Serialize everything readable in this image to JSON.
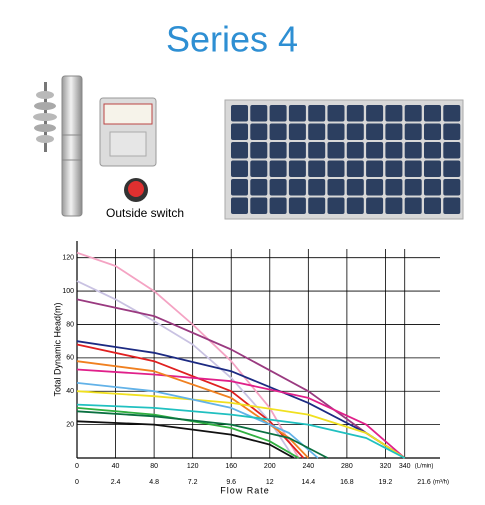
{
  "title": "Series 4",
  "switch_caption": "Outside switch",
  "chart_data": {
    "type": "line",
    "y_label": "Total Dynamic Head(m)",
    "x_label": "Flow Rate",
    "x_unit": "(L/min)",
    "x2_unit": "(m³/h)",
    "xlim": [
      0,
      360
    ],
    "xticks": [
      0,
      40,
      80,
      120,
      160,
      200,
      240,
      280,
      320,
      340
    ],
    "x2lim": [
      0,
      21.6
    ],
    "x2ticks": [
      0,
      2.4,
      4.8,
      7.2,
      9.6,
      12,
      14.4,
      16.8,
      19.2,
      21.6
    ],
    "ylim": [
      0,
      130
    ],
    "yticks": [
      20,
      40,
      60,
      80,
      100,
      120
    ],
    "grid": true,
    "series": [
      {
        "color": "#f4a3c3",
        "x": [
          0,
          40,
          80,
          120,
          160,
          200,
          230
        ],
        "values": [
          123,
          115,
          100,
          80,
          58,
          30,
          0
        ]
      },
      {
        "color": "#c9c2e2",
        "x": [
          0,
          40,
          80,
          120,
          160,
          200,
          225
        ],
        "values": [
          106,
          95,
          82,
          68,
          48,
          22,
          0
        ]
      },
      {
        "color": "#9a3a80",
        "x": [
          0,
          80,
          160,
          240,
          300,
          340
        ],
        "values": [
          95,
          85,
          65,
          40,
          15,
          0
        ]
      },
      {
        "color": "#1c2a82",
        "x": [
          0,
          80,
          160,
          240,
          300,
          340
        ],
        "values": [
          70,
          63,
          52,
          33,
          15,
          0
        ]
      },
      {
        "color": "#e02020",
        "x": [
          0,
          80,
          160,
          200,
          235
        ],
        "values": [
          68,
          58,
          40,
          22,
          0
        ]
      },
      {
        "color": "#e0208a",
        "x": [
          0,
          80,
          160,
          240,
          300,
          340
        ],
        "values": [
          53,
          50,
          46,
          36,
          20,
          0
        ]
      },
      {
        "color": "#f08020",
        "x": [
          0,
          80,
          160,
          220,
          240
        ],
        "values": [
          58,
          52,
          36,
          12,
          0
        ]
      },
      {
        "color": "#f0e020",
        "x": [
          0,
          80,
          160,
          240,
          300,
          340
        ],
        "values": [
          40,
          37,
          33,
          26,
          15,
          0
        ]
      },
      {
        "color": "#62b2e8",
        "x": [
          0,
          80,
          160,
          220,
          250
        ],
        "values": [
          45,
          40,
          30,
          15,
          0
        ]
      },
      {
        "color": "#20c0c0",
        "x": [
          0,
          80,
          160,
          240,
          300,
          340
        ],
        "values": [
          32,
          30,
          26,
          20,
          12,
          0
        ]
      },
      {
        "color": "#30b040",
        "x": [
          0,
          80,
          160,
          200,
          230
        ],
        "values": [
          30,
          26,
          18,
          10,
          0
        ]
      },
      {
        "color": "#0a7040",
        "x": [
          0,
          80,
          160,
          220,
          260
        ],
        "values": [
          28,
          25,
          20,
          12,
          0
        ]
      },
      {
        "color": "#111111",
        "x": [
          0,
          80,
          160,
          200,
          225
        ],
        "values": [
          22,
          20,
          14,
          8,
          0
        ]
      }
    ]
  }
}
